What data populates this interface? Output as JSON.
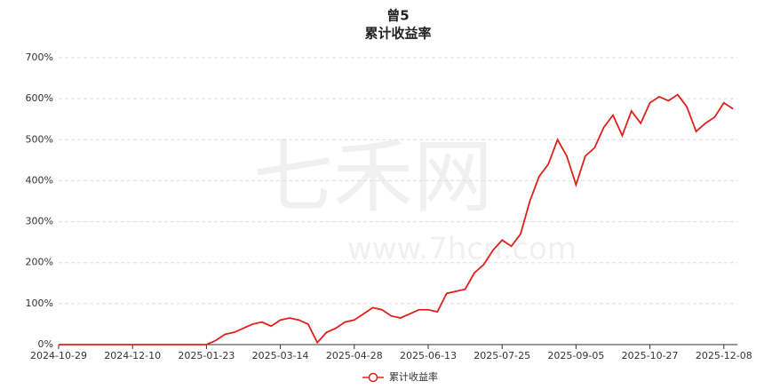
{
  "chart_data": {
    "type": "line",
    "title": "曾5",
    "subtitle": "累计收益率",
    "watermark": [
      "七禾网",
      "www.7hcn.com"
    ],
    "categories": [
      "2024-10-29",
      null,
      null,
      null,
      null,
      null,
      null,
      null,
      "2024-12-10",
      null,
      null,
      null,
      null,
      null,
      null,
      null,
      "2025-01-23",
      null,
      null,
      null,
      null,
      null,
      null,
      null,
      "2025-03-14",
      null,
      null,
      null,
      null,
      null,
      null,
      null,
      "2025-04-28",
      null,
      null,
      null,
      null,
      null,
      null,
      null,
      "2025-06-13",
      null,
      null,
      null,
      null,
      null,
      null,
      null,
      "2025-07-25",
      null,
      null,
      null,
      null,
      null,
      null,
      null,
      "2025-09-05",
      null,
      null,
      null,
      null,
      null,
      null,
      null,
      "2025-10-27",
      null,
      null,
      null,
      null,
      null,
      null,
      null,
      "2025-12-08",
      null
    ],
    "series": [
      {
        "name": "累计收益率",
        "color": "#e0201b",
        "values": [
          0,
          0,
          0,
          0,
          0,
          0,
          0,
          0,
          0,
          0,
          0,
          0,
          0,
          0,
          0,
          0,
          0,
          10,
          25,
          30,
          40,
          50,
          55,
          45,
          60,
          65,
          60,
          50,
          5,
          30,
          40,
          55,
          60,
          75,
          90,
          85,
          70,
          65,
          75,
          85,
          85,
          80,
          125,
          130,
          135,
          175,
          195,
          230,
          255,
          240,
          270,
          350,
          410,
          440,
          500,
          460,
          390,
          460,
          480,
          530,
          560,
          510,
          570,
          540,
          590,
          605,
          595,
          610,
          580,
          520,
          540,
          555,
          590,
          575
        ]
      }
    ],
    "ylim": [
      0,
      700
    ],
    "yticks": [
      {
        "value": 0,
        "label": "0%"
      },
      {
        "value": 100,
        "label": "100%"
      },
      {
        "value": 200,
        "label": "200%"
      },
      {
        "value": 300,
        "label": "300%"
      },
      {
        "value": 400,
        "label": "400%"
      },
      {
        "value": 500,
        "label": "500%"
      },
      {
        "value": 600,
        "label": "600%"
      },
      {
        "value": 700,
        "label": "700%"
      }
    ],
    "grid": true
  }
}
